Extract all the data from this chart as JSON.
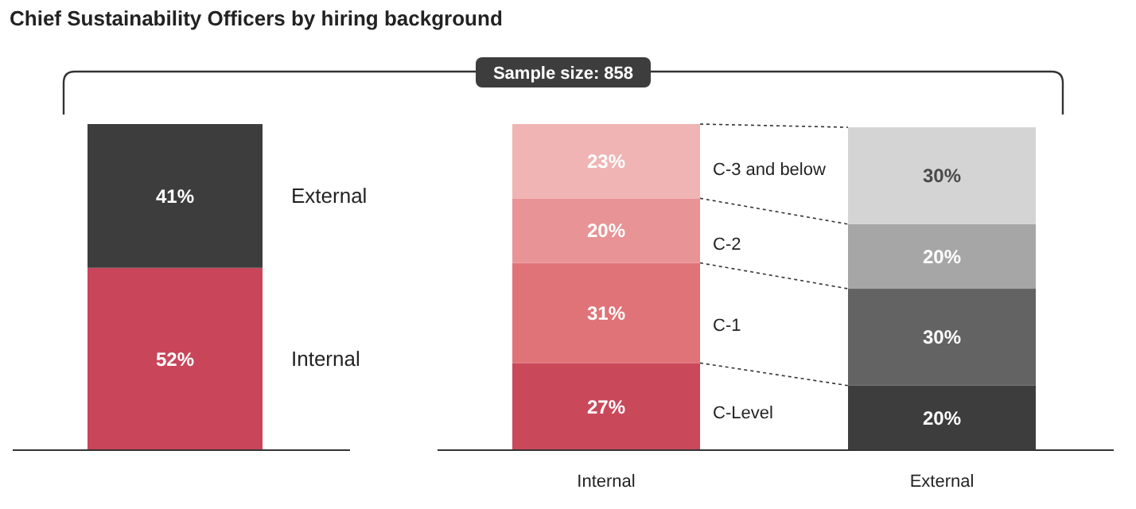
{
  "chart_data": [
    {
      "type": "bar",
      "title": "Chief Sustainability Officers by hiring background",
      "annotations": [
        "Sample size: 858"
      ],
      "stacked": true,
      "categories": [
        null
      ],
      "series": [
        {
          "name": "Internal",
          "color": "#c9455a",
          "values": [
            52
          ],
          "value_labels": [
            "52%"
          ]
        },
        {
          "name": "External",
          "color": "#3d3d3d",
          "values": [
            41
          ],
          "value_labels": [
            "41%"
          ]
        }
      ]
    },
    {
      "type": "bar",
      "stacked": true,
      "categories": [
        "Internal",
        "External"
      ],
      "series": [
        {
          "name": "C-Level",
          "colors": [
            "#c9485a",
            "#3d3d3d"
          ],
          "values": [
            27,
            20
          ],
          "value_labels": [
            "27%",
            "20%"
          ]
        },
        {
          "name": "C-1",
          "colors": [
            "#e07378",
            "#636363"
          ],
          "values": [
            31,
            30
          ],
          "value_labels": [
            "31%",
            "30%"
          ]
        },
        {
          "name": "C-2",
          "colors": [
            "#e89396",
            "#a6a6a6"
          ],
          "values": [
            20,
            20
          ],
          "value_labels": [
            "20%",
            "20%"
          ]
        },
        {
          "name": "C-3 and below",
          "colors": [
            "#f0b4b4",
            "#d4d4d4"
          ],
          "values": [
            23,
            30
          ],
          "value_labels": [
            "23%",
            "30%"
          ]
        }
      ]
    }
  ]
}
